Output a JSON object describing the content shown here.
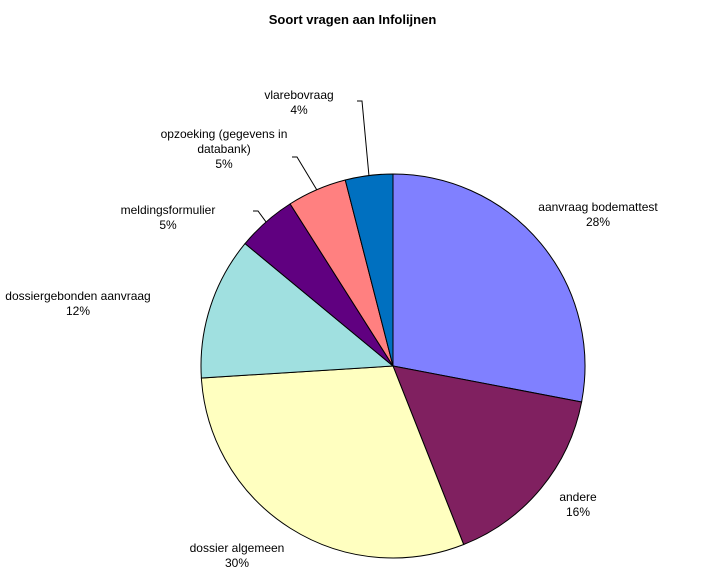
{
  "chart_data": {
    "type": "pie",
    "title": "Soort vragen aan Infolijnen",
    "categories": [
      "aanvraag bodemattest",
      "andere",
      "dossier algemeen",
      "dossiergebonden aanvraag",
      "meldingsformulier",
      "opzoeking (gegevens in databank)",
      "vlarebovraag"
    ],
    "values": [
      28,
      16,
      30,
      12,
      5,
      5,
      4
    ],
    "value_labels": [
      "28%",
      "16%",
      "30%",
      "12%",
      "5%",
      "5%",
      "4%"
    ],
    "colors": [
      "#8080ff",
      "#802060",
      "#ffffc0",
      "#a0e0e0",
      "#600080",
      "#ff8080",
      "#0070c0"
    ]
  }
}
